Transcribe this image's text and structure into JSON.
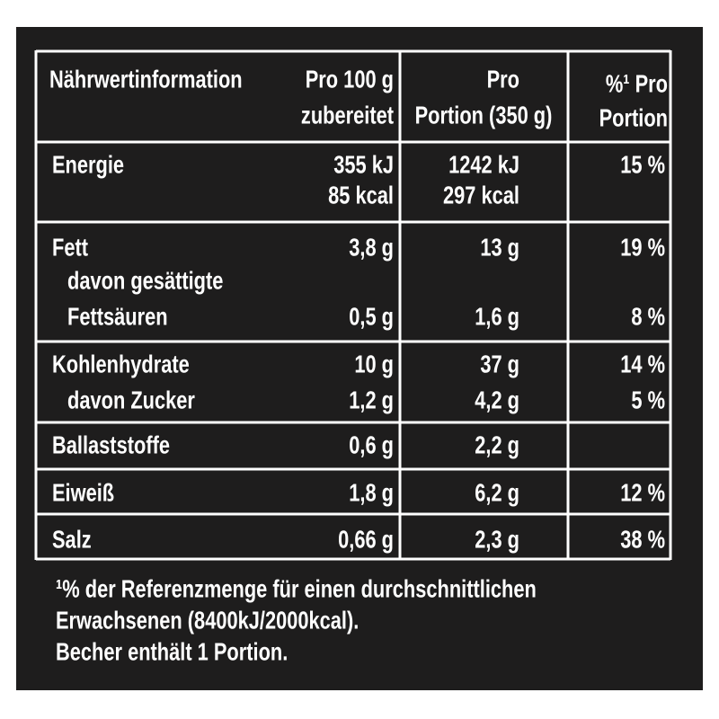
{
  "header": {
    "label": "Nährwertinformation",
    "per100": [
      "Pro 100 g",
      "zubereitet"
    ],
    "portion": [
      "Pro",
      "Portion (350 g)"
    ],
    "percent": [
      "%¹ Pro",
      "Portion"
    ]
  },
  "table": {
    "lines": [
      {
        "label": "Energie",
        "per100": "355 kJ",
        "portion": "1242 kJ",
        "percent": "15 %"
      },
      {
        "per100": "85 kcal",
        "portion": "297 kcal"
      },
      {
        "label": "Fett",
        "per100": "3,8 g",
        "portion": "13 g",
        "percent": "19 %"
      },
      {
        "label": "davon gesättigte"
      },
      {
        "label": "Fettsäuren",
        "per100": "0,5 g",
        "portion": "1,6 g",
        "percent": "8 %"
      },
      {
        "label": "Kohlenhydrate",
        "per100": "10 g",
        "portion": "37 g",
        "percent": "14 %"
      },
      {
        "label": "davon Zucker",
        "per100": "1,2 g",
        "portion": "4,2 g",
        "percent": "5 %"
      },
      {
        "label": "Ballaststoffe",
        "per100": "0,6 g",
        "portion": "2,2 g"
      },
      {
        "label": "Eiweiß",
        "per100": "1,8 g",
        "portion": "6,2 g",
        "percent": "12 %"
      },
      {
        "label": "Salz",
        "per100": "0,66 g",
        "portion": "2,3 g",
        "percent": "38 %"
      }
    ]
  },
  "footnote": [
    "¹% der Referenzmenge für einen durchschnittlichen",
    "Erwachsenen (8400kJ/2000kcal).",
    "Becher enthält 1 Portion."
  ]
}
